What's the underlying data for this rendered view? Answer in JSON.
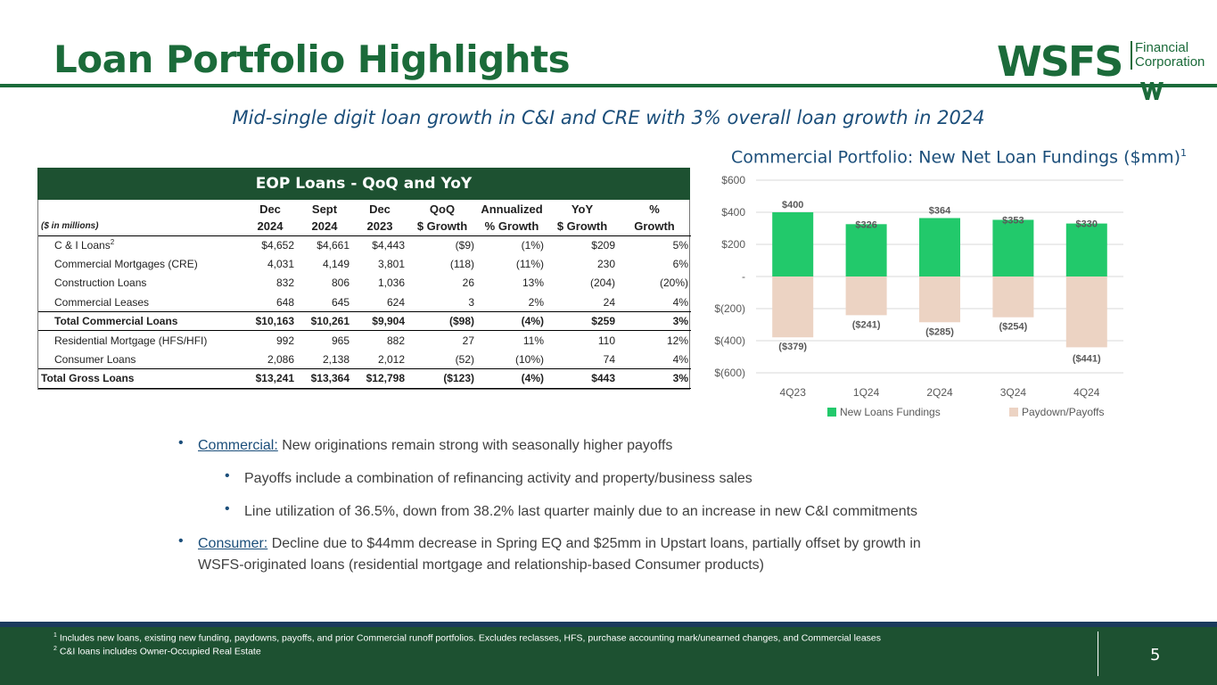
{
  "header": {
    "title": "Loan Portfolio Highlights",
    "logo_word": "WSFS",
    "logo_sub_line1": "Financial",
    "logo_sub_line2": "Corporation",
    "subtitle": "Mid-single digit loan growth in C&I and CRE with 3% overall loan growth in 2024"
  },
  "table": {
    "title": "EOP Loans - QoQ and YoY",
    "units_label": "($ in millions)",
    "col_top": [
      "Dec",
      "Sept",
      "Dec",
      "QoQ",
      "Annualized",
      "YoY",
      "%"
    ],
    "col_bottom": [
      "2024",
      "2024",
      "2023",
      "$ Growth",
      "% Growth",
      "$ Growth",
      "Growth"
    ],
    "rows": [
      {
        "label": "C & I Loans",
        "sup": "2",
        "vals": [
          "$4,652",
          "$4,661",
          "$4,443",
          "($9)",
          "(1%)",
          "$209",
          "5%"
        ]
      },
      {
        "label": "Commercial Mortgages (CRE)",
        "sup": "",
        "vals": [
          "4,031",
          "4,149",
          "3,801",
          "(118)",
          "(11%)",
          "230",
          "6%"
        ]
      },
      {
        "label": "Construction Loans",
        "sup": "",
        "vals": [
          "832",
          "806",
          "1,036",
          "26",
          "13%",
          "(204)",
          "(20%)"
        ]
      },
      {
        "label": "Commercial Leases",
        "sup": "",
        "vals": [
          "648",
          "645",
          "624",
          "3",
          "2%",
          "24",
          "4%"
        ]
      },
      {
        "label": "Total Commercial Loans",
        "sup": "",
        "vals": [
          "$10,163",
          "$10,261",
          "$9,904",
          "($98)",
          "(4%)",
          "$259",
          "3%"
        ]
      },
      {
        "label": "Residential Mortgage (HFS/HFI)",
        "sup": "",
        "vals": [
          "992",
          "965",
          "882",
          "27",
          "11%",
          "110",
          "12%"
        ]
      },
      {
        "label": "Consumer Loans",
        "sup": "",
        "vals": [
          "2,086",
          "2,138",
          "2,012",
          "(52)",
          "(10%)",
          "74",
          "4%"
        ]
      },
      {
        "label": "Total Gross Loans",
        "sup": "",
        "vals": [
          "$13,241",
          "$13,364",
          "$12,798",
          "($123)",
          "(4%)",
          "$443",
          "3%"
        ]
      }
    ]
  },
  "chart_data": {
    "type": "bar",
    "title": "Commercial Portfolio: New Net Loan Fundings ($mm)",
    "title_sup": "1",
    "categories": [
      "4Q23",
      "1Q24",
      "2Q24",
      "3Q24",
      "4Q24"
    ],
    "series": [
      {
        "name": "New Loans Fundings",
        "values": [
          400,
          326,
          364,
          353,
          330
        ],
        "labels": [
          "$400",
          "$326",
          "$364",
          "$353",
          "$330"
        ],
        "color": "#22c96b"
      },
      {
        "name": "Paydown/Payoffs",
        "values": [
          -379,
          -241,
          -285,
          -254,
          -441
        ],
        "labels": [
          "($379)",
          "($241)",
          "($285)",
          "($254)",
          "($441)"
        ],
        "color": "#ecd3c3"
      }
    ],
    "y_ticks": [
      600,
      400,
      200,
      0,
      -200,
      -400,
      -600
    ],
    "y_tick_labels": [
      "$600",
      "$400",
      "$200",
      "-",
      "$(200)",
      "$(400)",
      "$(600)"
    ],
    "ylim": [
      -600,
      600
    ],
    "legend": "bottom"
  },
  "bullets": {
    "b1_label": "Commercial:",
    "b1_text": " New originations remain strong with seasonally higher payoffs",
    "b2_text": "Payoffs include a combination of refinancing activity and property/business sales",
    "b3_text": "Line utilization of 36.5%, down from 38.2% last quarter mainly due to an increase in new C&I commitments",
    "b4_label": "Consumer:",
    "b4_text": " Decline due to $44mm decrease in Spring EQ and $25mm in Upstart loans, partially offset by growth in",
    "b4_text2": "WSFS-originated loans (residential mortgage and relationship-based Consumer products)",
    "bullet_glyph": "•"
  },
  "footer": {
    "fn1_sup": "1",
    "fn1": " Includes new loans, existing new funding, paydowns, payoffs, and prior Commercial runoff portfolios. Excludes reclasses, HFS, purchase accounting mark/unearned changes, and Commercial leases",
    "fn2_sup": "2",
    "fn2": " C&I loans includes Owner-Occupied Real Estate",
    "page_number": "5"
  },
  "colors": {
    "brand_green": "#1b6b3a",
    "dark_green": "#1d5131",
    "navy": "#1b3a5c"
  }
}
